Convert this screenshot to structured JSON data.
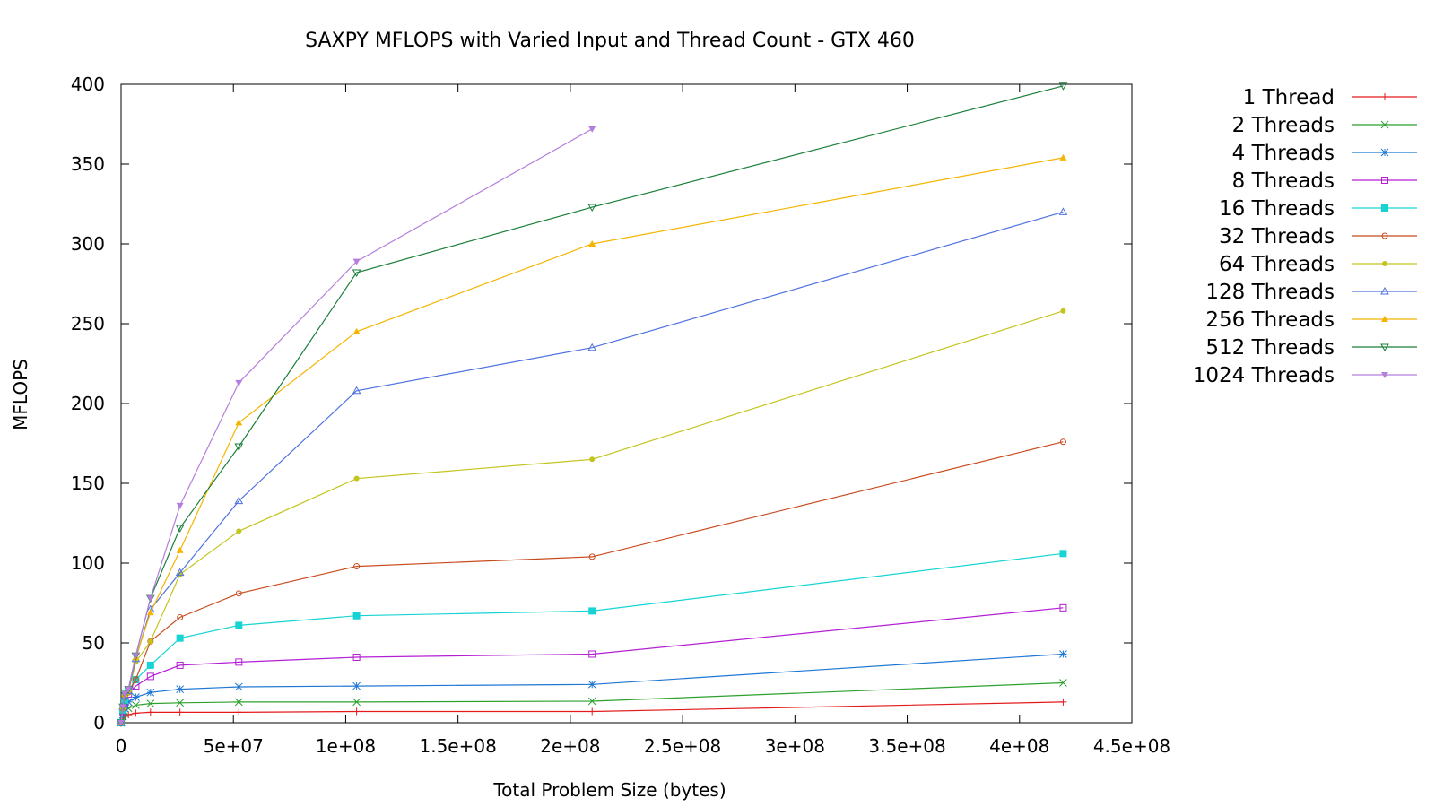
{
  "chart_data": {
    "type": "line",
    "title": "SAXPY MFLOPS with Varied Input and Thread Count - GTX 460",
    "xlabel": "Total Problem Size (bytes)",
    "ylabel": "MFLOPS",
    "xlim": [
      0,
      450000000
    ],
    "ylim": [
      0,
      400
    ],
    "xticks": [
      0,
      50000000,
      100000000,
      150000000,
      200000000,
      250000000,
      300000000,
      350000000,
      400000000,
      450000000
    ],
    "xtick_labels": [
      "0",
      "5e+07",
      "1e+08",
      "1.5e+08",
      "2e+08",
      "2.5e+08",
      "3e+08",
      "3.5e+08",
      "4e+08",
      "4.5e+08"
    ],
    "yticks": [
      0,
      50,
      100,
      150,
      200,
      250,
      300,
      350,
      400
    ],
    "ytick_labels": [
      "0",
      "50",
      "100",
      "150",
      "200",
      "250",
      "300",
      "350",
      "400"
    ],
    "grid": false,
    "legend_position": "outside-right-top",
    "series": [
      {
        "name": "1 Thread",
        "color": "#e41a1c",
        "marker": "plus",
        "x": [
          0,
          819200,
          1638400,
          3276800,
          6553600,
          13107200,
          26214400,
          52428800,
          104857600,
          209715200,
          419430400
        ],
        "y": [
          0,
          2,
          4,
          5,
          6,
          6.5,
          6.5,
          6.5,
          7,
          7,
          13
        ]
      },
      {
        "name": "2 Threads",
        "color": "#2ca02c",
        "marker": "cross",
        "x": [
          0,
          819200,
          1638400,
          3276800,
          6553600,
          13107200,
          26214400,
          52428800,
          104857600,
          209715200,
          419430400
        ],
        "y": [
          0,
          4,
          7,
          9,
          11,
          12,
          12.5,
          13,
          13,
          13.5,
          25
        ]
      },
      {
        "name": "4 Threads",
        "color": "#1f77d4",
        "marker": "star",
        "x": [
          0,
          819200,
          1638400,
          3276800,
          6553600,
          13107200,
          26214400,
          52428800,
          104857600,
          209715200,
          419430400
        ],
        "y": [
          0,
          5,
          9,
          13,
          16,
          19,
          21,
          22.5,
          23,
          24,
          43
        ]
      },
      {
        "name": "8 Threads",
        "color": "#b41fd4",
        "marker": "square",
        "x": [
          0,
          819200,
          1638400,
          3276800,
          6553600,
          13107200,
          26214400,
          52428800,
          104857600,
          209715200,
          419430400
        ],
        "y": [
          0,
          7,
          12,
          18,
          23,
          29,
          36,
          38,
          41,
          43,
          72
        ]
      },
      {
        "name": "16 Threads",
        "color": "#17d4d4",
        "marker": "square-filled",
        "x": [
          0,
          819200,
          1638400,
          3276800,
          6553600,
          13107200,
          26214400,
          52428800,
          104857600,
          209715200,
          419430400
        ],
        "y": [
          0,
          8,
          14,
          20,
          27,
          36,
          53,
          61,
          67,
          70,
          106
        ]
      },
      {
        "name": "32 Threads",
        "color": "#c84b1e",
        "marker": "circle",
        "x": [
          0,
          819200,
          1638400,
          3276800,
          6553600,
          13107200,
          26214400,
          52428800,
          104857600,
          209715200,
          419430400
        ],
        "y": [
          0,
          9,
          16,
          19,
          27,
          51,
          66,
          81,
          98,
          104,
          176
        ]
      },
      {
        "name": "64 Threads",
        "color": "#c4c41e",
        "marker": "circle-filled",
        "x": [
          0,
          819200,
          1638400,
          3276800,
          6553600,
          13107200,
          26214400,
          52428800,
          104857600,
          209715200,
          419430400
        ],
        "y": [
          0,
          9,
          17,
          19,
          38,
          51,
          93,
          120,
          153,
          165,
          258
        ]
      },
      {
        "name": "128 Threads",
        "color": "#4f72e0",
        "marker": "triangle",
        "x": [
          0,
          819200,
          1638400,
          3276800,
          6553600,
          13107200,
          26214400,
          52428800,
          104857600,
          209715200,
          419430400
        ],
        "y": [
          0,
          10,
          17,
          20,
          40,
          71,
          94,
          139,
          208,
          235,
          320
        ]
      },
      {
        "name": "256 Threads",
        "color": "#f4b400",
        "marker": "triangle-filled",
        "x": [
          0,
          819200,
          1638400,
          3276800,
          6553600,
          13107200,
          26214400,
          52428800,
          104857600,
          209715200,
          419430400
        ],
        "y": [
          0,
          10,
          18,
          21,
          41,
          69,
          108,
          188,
          245,
          300,
          354
        ]
      },
      {
        "name": "512 Threads",
        "color": "#1b7f3a",
        "marker": "triangle-down",
        "x": [
          0,
          819200,
          1638400,
          3276800,
          6553600,
          13107200,
          26214400,
          52428800,
          104857600,
          209715200,
          419430400
        ],
        "y": [
          0,
          10,
          18,
          21,
          42,
          78,
          122,
          173,
          282,
          323,
          399
        ]
      },
      {
        "name": "1024 Threads",
        "color": "#b57edc",
        "marker": "triangle-down-filled",
        "x": [
          0,
          819200,
          1638400,
          3276800,
          6553600,
          13107200,
          26214400,
          52428800,
          104857600,
          209715200
        ],
        "y": [
          0,
          10,
          18,
          21,
          42,
          78,
          136,
          213,
          289,
          372
        ]
      }
    ]
  }
}
